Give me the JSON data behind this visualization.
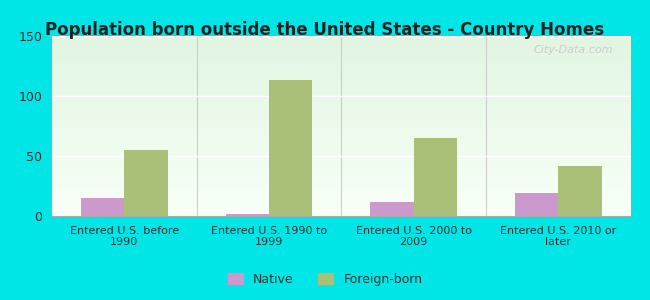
{
  "title": "Population born outside the United States - Country Homes",
  "categories": [
    "Entered U.S. before\n1990",
    "Entered U.S. 1990 to\n1999",
    "Entered U.S. 2000 to\n2009",
    "Entered U.S. 2010 or\nlater"
  ],
  "native_values": [
    15,
    2,
    12,
    19
  ],
  "foreign_values": [
    55,
    113,
    65,
    42
  ],
  "native_color": "#cc99cc",
  "foreign_color": "#aabf77",
  "background_color": "#00e5e5",
  "ylim": [
    0,
    150
  ],
  "yticks": [
    0,
    50,
    100,
    150
  ],
  "bar_width": 0.3,
  "title_fontsize": 12,
  "tick_fontsize": 8,
  "legend_native": "Native",
  "legend_foreign": "Foreign-born",
  "watermark": "City-Data.com"
}
